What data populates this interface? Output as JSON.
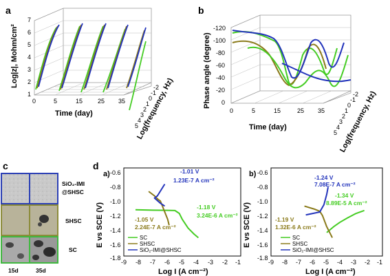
{
  "panels": {
    "a": {
      "label": "a",
      "zlabel": "Log|z|, Mohm/cm²",
      "xlabel": "Time (day)",
      "ylabel": "Log(frequency, Hz)",
      "zticks": [
        "1",
        "2",
        "3",
        "4",
        "5",
        "6",
        "7"
      ],
      "xticks": [
        "0",
        "5",
        "15",
        "25",
        "35"
      ],
      "yticks": [
        "-2",
        "-1",
        "0",
        "1",
        "2",
        "3",
        "4",
        "5"
      ]
    },
    "b": {
      "label": "b",
      "zlabel": "Phase angle (degree)",
      "xlabel": "Time (day)",
      "ylabel": "Log(frequency, Hz)",
      "zticks": [
        "-120",
        "-100",
        "-80",
        "-60",
        "-40",
        "-20",
        "0"
      ],
      "xticks": [
        "0",
        "5",
        "15",
        "25",
        "35"
      ],
      "yticks": [
        "-2",
        "-1",
        "0",
        "1",
        "2",
        "3",
        "4",
        "5"
      ]
    },
    "c": {
      "label": "c",
      "rows": [
        "SiO₂-IMI",
        "@SHSC",
        "SHSC",
        "SC"
      ],
      "cols": [
        "15d",
        "35d"
      ],
      "frame_colors": [
        "#2b3fb5",
        "#8c8c3a",
        "#3fb83f"
      ]
    },
    "d": {
      "label": "d",
      "sub_a": {
        "label": "a)",
        "annotations": [
          {
            "v": "-1.01 V",
            "i": "1.23E-7 A cm⁻²",
            "color": "#2233bb"
          },
          {
            "v": "-1.18 V",
            "i": "3.24E-6 A cm⁻²",
            "color": "#44cc22"
          },
          {
            "v": "-1.05 V",
            "i": "2.24E-7 A cm⁻²",
            "color": "#8a7a1a"
          }
        ]
      },
      "sub_b": {
        "label": "b)",
        "annotations": [
          {
            "v": "-1.24 V",
            "i": "7.08E-7 A cm⁻²",
            "color": "#2233bb"
          },
          {
            "v": "-1.34 V",
            "i": "8.89E-5 A cm⁻²",
            "color": "#44cc22"
          },
          {
            "v": "-1.19 V",
            "i": "1.32E-6 A cm⁻²",
            "color": "#8a7a1a"
          }
        ]
      },
      "ylabel": "E vs SCE (V)",
      "xlabel": "Log I (A cm⁻²)",
      "yticks": [
        "-0.6",
        "-0.8",
        "-1.0",
        "-1.2",
        "-1.4",
        "-1.6",
        "-1.8"
      ],
      "xticks": [
        "-9",
        "-8",
        "-7",
        "-6",
        "-5",
        "-4",
        "-3",
        "-2",
        "-1"
      ],
      "legend": [
        "SC",
        "SHSC",
        "SiO₂-IMI@SHSC"
      ]
    }
  },
  "colors": {
    "SC": "#44cc22",
    "SHSC": "#8a7a1a",
    "SiO2-IMI@SHSC": "#2233bb"
  },
  "chart_data": [
    {
      "type": "line",
      "panel": "d-a",
      "xlabel": "Log I (A cm⁻²)",
      "ylabel": "E vs SCE (V)",
      "xlim": [
        -9,
        -1
      ],
      "ylim": [
        -1.8,
        -0.6
      ],
      "series": [
        {
          "name": "SC",
          "x": [
            -8.2,
            -7.0,
            -6.0,
            -5.5,
            -5.2,
            -5.0,
            -4.6,
            -4.2,
            -3.9
          ],
          "y": [
            -1.17,
            -1.175,
            -1.178,
            -1.18,
            -1.22,
            -1.3,
            -1.42,
            -1.5,
            -1.55
          ]
        },
        {
          "name": "SHSC",
          "x": [
            -7.3,
            -6.9,
            -6.65,
            -6.5,
            -6.3,
            -6.0,
            -5.9
          ],
          "y": [
            -0.92,
            -0.98,
            -1.03,
            -1.05,
            -1.15,
            -1.3,
            -1.38
          ]
        },
        {
          "name": "SiO₂-IMI@SHSC",
          "x": [
            -6.2,
            -6.45,
            -6.7,
            -6.9,
            -6.5,
            -6.2
          ],
          "y": [
            -0.82,
            -0.9,
            -0.98,
            -1.01,
            -1.08,
            -1.12
          ]
        }
      ]
    },
    {
      "type": "line",
      "panel": "d-b",
      "xlabel": "Log I (A cm⁻²)",
      "ylabel": "E vs SCE (V)",
      "xlim": [
        -9,
        -1
      ],
      "ylim": [
        -1.8,
        -0.6
      ],
      "series": [
        {
          "name": "SC",
          "x": [
            -5.0,
            -4.5,
            -4.05,
            -3.5,
            -2.9,
            -2.3
          ],
          "y": [
            -1.48,
            -1.4,
            -1.34,
            -1.28,
            -1.22,
            -1.18
          ]
        },
        {
          "name": "SHSC",
          "x": [
            -6.6,
            -5.9,
            -5.5,
            -5.3,
            -5.0,
            -4.6
          ],
          "y": [
            -1.12,
            -1.16,
            -1.19,
            -1.25,
            -1.4,
            -1.55
          ]
        },
        {
          "name": "SiO₂-IMI@SHSC",
          "x": [
            -6.5,
            -6.0,
            -5.5,
            -5.2,
            -5.0,
            -4.9
          ],
          "y": [
            -1.24,
            -1.22,
            -1.2,
            -1.1,
            -0.96,
            -0.86
          ]
        }
      ]
    }
  ]
}
